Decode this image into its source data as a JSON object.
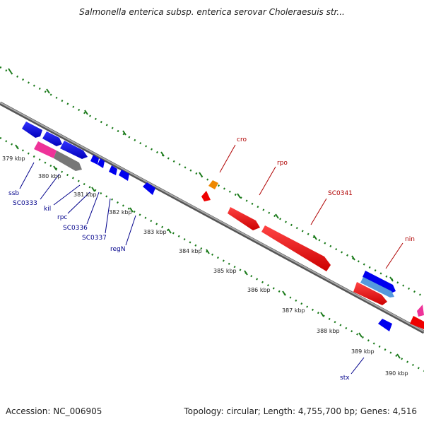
{
  "title": "Salmonella enterica subsp. enterica serovar Choleraesuis str...",
  "footer": {
    "accession": "Accession: NC_006905",
    "topology": "Topology: circular; Length: 4,755,700 bp; Genes: 4,516"
  },
  "scale": {
    "labels": [
      "379 kbp",
      "380 kbp",
      "381 kbp",
      "382 kbp",
      "383 kbp",
      "384 kbp",
      "385 kbp",
      "386 kbp",
      "387 kbp",
      "388 kbp",
      "389 kbp",
      "390 kbp"
    ]
  },
  "gene_labels": {
    "cro": "cro",
    "rpo_top": "rpo",
    "sc0341": "SC0341",
    "nin": "nin",
    "ssb": "ssb",
    "sc0333": "SC0333",
    "kil": "kil",
    "rpc": "rpc",
    "sc0336": "SC0336",
    "sc0337": "SC0337",
    "regN": "regN",
    "stx": "stx"
  },
  "colors": {
    "backbone": "#888888",
    "tick": "#1a7a1a",
    "gene_forward": "#0000ee",
    "gene_reverse": "#ee0000",
    "gene_pink": "#ee3399",
    "gene_gray": "#777777",
    "gene_orange": "#ee8800",
    "gene_lightblue": "#5599dd",
    "label_blue": "#00008b",
    "label_red": "#b00000"
  }
}
